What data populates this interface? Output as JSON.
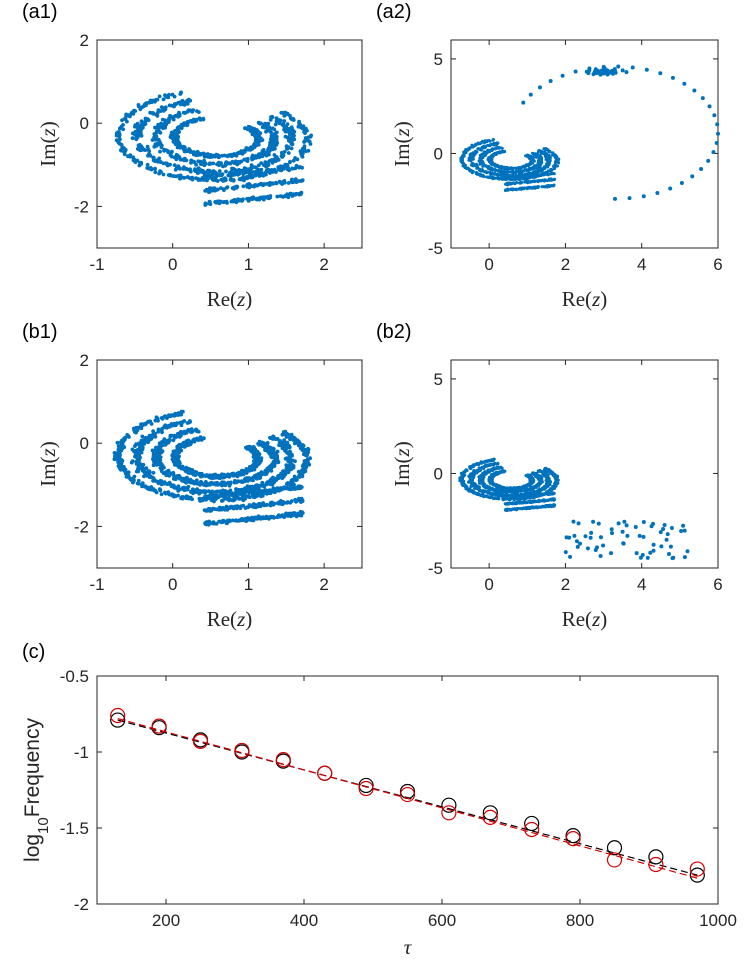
{
  "colors": {
    "scatter": "#0072BD",
    "series_black": "#000000",
    "series_red": "#D40000",
    "axis": "#262626"
  },
  "chart_data": [
    {
      "id": "a1",
      "panel_label": "(a1)",
      "type": "scatter",
      "xlabel": "Re(z)",
      "ylabel": "Im(z)",
      "xlim": [
        -1,
        2.5
      ],
      "ylim": [
        -3,
        2
      ],
      "xticks": [
        "-1",
        "0",
        "1",
        "2"
      ],
      "yticks": [
        "2",
        "0",
        "-2"
      ],
      "grid": false,
      "content": "chaotic attractor (C-shaped spiral), real part approx -0.3 to 1.7, imaginary part approx -2.1 to 0.9"
    },
    {
      "id": "a2",
      "panel_label": "(a2)",
      "type": "scatter",
      "xlabel": "Re(z)",
      "ylabel": "Im(z)",
      "xlim": [
        -1,
        6
      ],
      "ylim": [
        -5,
        6
      ],
      "xticks": [
        "0",
        "2",
        "4",
        "6"
      ],
      "yticks": [
        "5",
        "0",
        "-5"
      ],
      "grid": false,
      "content": "attractor plus outer excursion loop reaching Re(z)=6 and spiralling into a point near (3, 4.3)"
    },
    {
      "id": "b1",
      "panel_label": "(b1)",
      "type": "scatter",
      "xlabel": "Re(z)",
      "ylabel": "Im(z)",
      "xlim": [
        -1,
        2.5
      ],
      "ylim": [
        -3,
        2
      ],
      "xticks": [
        "-1",
        "0",
        "1",
        "2"
      ],
      "yticks": [
        "2",
        "0",
        "-2"
      ],
      "grid": false,
      "content": "chaotic attractor (C-shaped spiral), denser sampling"
    },
    {
      "id": "b2",
      "panel_label": "(b2)",
      "type": "scatter",
      "xlabel": "Re(z)",
      "ylabel": "Im(z)",
      "xlim": [
        -1,
        6
      ],
      "ylim": [
        -5,
        6
      ],
      "xticks": [
        "0",
        "2",
        "4",
        "6"
      ],
      "yticks": [
        "5",
        "0",
        "-5"
      ],
      "grid": false,
      "content": "attractor plus scattered points between Re(z)=2 and 5.2, Im(z)=-2.5 to -4.5"
    },
    {
      "id": "c",
      "panel_label": "(c)",
      "type": "line",
      "xlabel": "τ",
      "ylabel": "log10Frequency",
      "xlim": [
        100,
        1000
      ],
      "ylim": [
        -2,
        -0.5
      ],
      "xticks": [
        "200",
        "400",
        "600",
        "800",
        "1000"
      ],
      "yticks": [
        "-0.5",
        "-1",
        "-1.5",
        "-2"
      ],
      "grid": false,
      "x": [
        130,
        190,
        250,
        310,
        370,
        430,
        490,
        550,
        610,
        670,
        730,
        790,
        850,
        910,
        970
      ],
      "series": [
        {
          "color": "#000000",
          "values": [
            -0.79,
            -0.84,
            -0.92,
            -1.0,
            -1.06,
            -1.14,
            -1.22,
            -1.26,
            -1.35,
            -1.4,
            -1.47,
            -1.55,
            -1.63,
            -1.69,
            -1.81
          ],
          "fit": [
            -0.79,
            -1.81
          ]
        },
        {
          "color": "#D40000",
          "values": [
            -0.76,
            -0.83,
            -0.93,
            -0.99,
            -1.05,
            -1.14,
            -1.24,
            -1.28,
            -1.4,
            -1.43,
            -1.51,
            -1.57,
            -1.71,
            -1.74,
            -1.77
          ],
          "fit": [
            -0.78,
            -1.83
          ]
        }
      ]
    }
  ]
}
